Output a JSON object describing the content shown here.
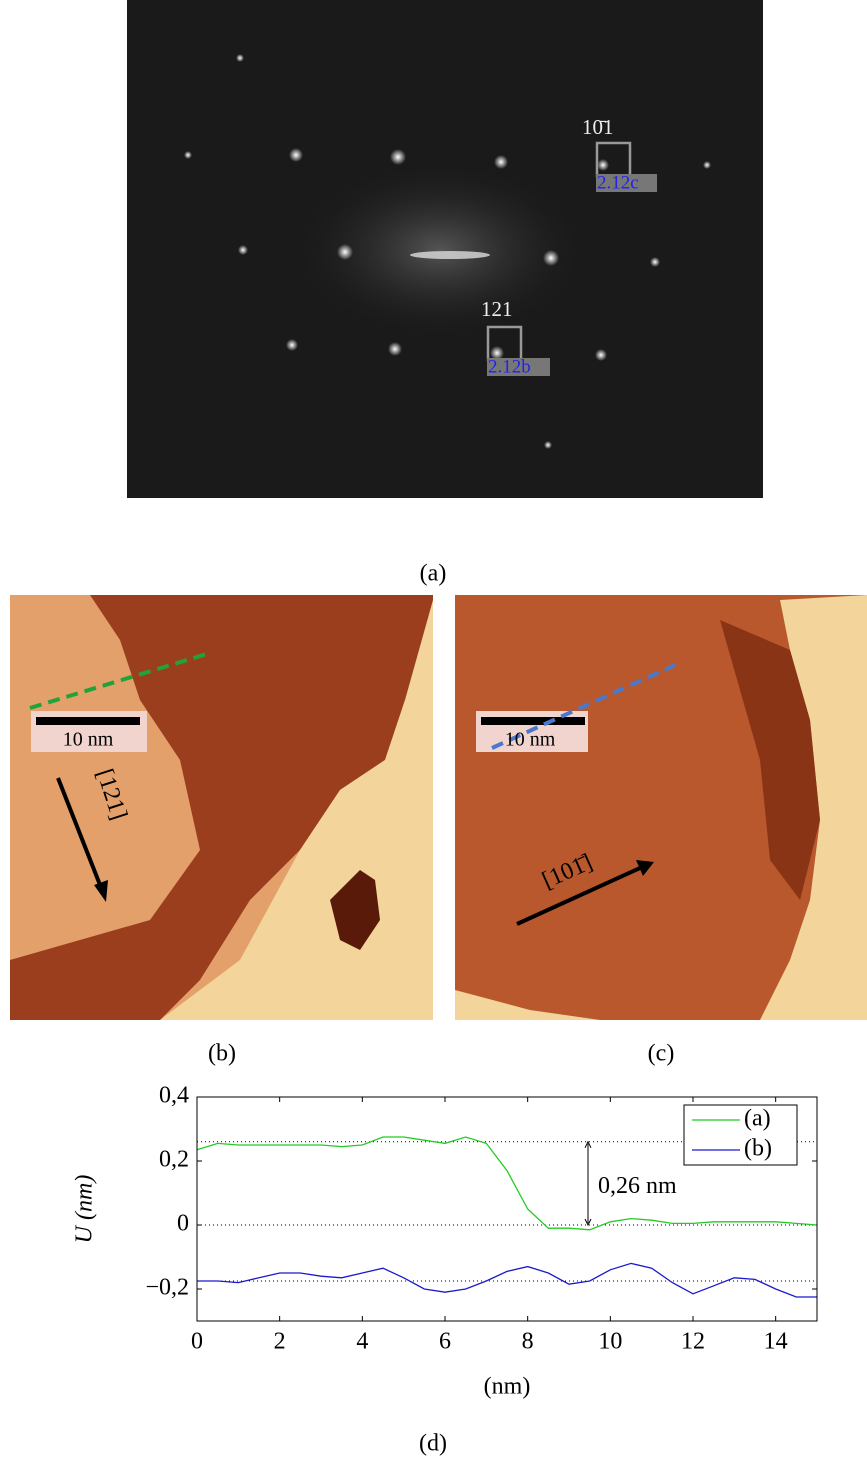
{
  "figure": {
    "panel_a": {
      "caption": "(a)",
      "spot_labels": [
        "10̄1",
        "121"
      ],
      "box_labels": [
        "2.12c",
        "2.12b"
      ]
    },
    "panel_b": {
      "caption": "(b)",
      "direction": "[121]",
      "scale_bar": "10 nm"
    },
    "panel_c": {
      "caption": "(c)",
      "direction": "[101̄]",
      "scale_bar": "10 nm"
    }
  },
  "chart_data": {
    "type": "line",
    "caption": "(d)",
    "xlabel": "(nm)",
    "ylabel": "U (nm)",
    "annotation": "0,26 nm",
    "x": [
      0,
      0.5,
      1,
      1.5,
      2,
      2.5,
      3,
      3.5,
      4,
      4.5,
      5,
      5.5,
      6,
      6.5,
      7,
      7.5,
      8,
      8.5,
      9,
      9.5,
      10,
      10.5,
      11,
      11.5,
      12,
      12.5,
      13,
      13.5,
      14,
      14.5,
      15
    ],
    "series": [
      {
        "name": "(a)",
        "color": "#22cc22",
        "values": [
          0.235,
          0.255,
          0.25,
          0.25,
          0.25,
          0.25,
          0.25,
          0.245,
          0.25,
          0.275,
          0.275,
          0.265,
          0.255,
          0.275,
          0.255,
          0.17,
          0.05,
          -0.01,
          -0.01,
          -0.015,
          0.01,
          0.02,
          0.015,
          0.005,
          0.005,
          0.01,
          0.01,
          0.01,
          0.01,
          0.005,
          0
        ]
      },
      {
        "name": "(b)",
        "color": "#1a1acc",
        "values": [
          -0.175,
          -0.175,
          -0.18,
          -0.165,
          -0.15,
          -0.15,
          -0.16,
          -0.165,
          -0.15,
          -0.135,
          -0.165,
          -0.2,
          -0.21,
          -0.2,
          -0.175,
          -0.145,
          -0.13,
          -0.15,
          -0.185,
          -0.175,
          -0.14,
          -0.12,
          -0.135,
          -0.18,
          -0.215,
          -0.19,
          -0.165,
          -0.17,
          -0.2,
          -0.225,
          -0.225
        ]
      }
    ],
    "hlines": [
      0.26,
      0,
      -0.175
    ],
    "xlim": [
      0,
      15
    ],
    "xticks": [
      0,
      2,
      4,
      6,
      8,
      10,
      12,
      14
    ],
    "ylim": [
      -0.3,
      0.4
    ],
    "yticks": [
      {
        "value": -0.2,
        "label": "−0,2"
      },
      0,
      {
        "value": 0.2,
        "label": "0,2"
      },
      {
        "value": 0.4,
        "label": "0,4"
      }
    ],
    "legend": "upper right"
  }
}
